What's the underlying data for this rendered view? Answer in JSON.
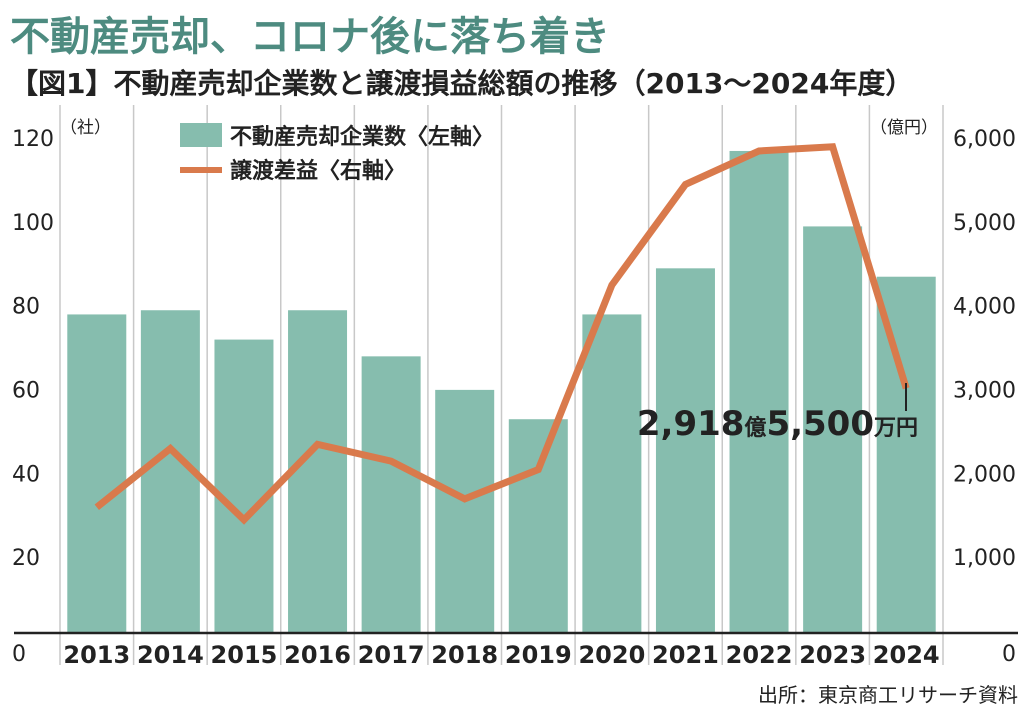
{
  "title": "不動産売却、コロナ後に落ち着き",
  "subtitle": "【図1】不動産売却企業数と譲渡損益総額の推移（2013～2024年度）",
  "source": "出所：東京商工リサーチ資料",
  "colors": {
    "bar": "#86bdae",
    "line": "#d97a4c",
    "title": "#4d8b80",
    "axis": "#222222"
  },
  "chart_data": {
    "type": "bar+line",
    "categories": [
      "2013",
      "2014",
      "2015",
      "2016",
      "2017",
      "2018",
      "2019",
      "2020",
      "2021",
      "2022",
      "2023",
      "2024"
    ],
    "series": [
      {
        "name": "不動産売却企業数〈左軸〉",
        "type": "bar",
        "axis": "left",
        "values": [
          76,
          77,
          70,
          77,
          66,
          58,
          51,
          76,
          87,
          115,
          97,
          85
        ]
      },
      {
        "name": "譲渡差益〈右軸〉",
        "type": "line",
        "axis": "right",
        "values": [
          1500,
          2200,
          1350,
          2250,
          2050,
          1600,
          1950,
          4150,
          5350,
          5750,
          5800,
          2918.55
        ]
      }
    ],
    "left_axis": {
      "unit": "（社）",
      "ylim": [
        0,
        120
      ],
      "ticks": [
        0,
        20,
        40,
        60,
        80,
        100,
        120
      ]
    },
    "right_axis": {
      "unit": "（億円）",
      "ylim": [
        0,
        6000
      ],
      "ticks": [
        "0",
        "1,000",
        "2,000",
        "3,000",
        "4,000",
        "5,000",
        "6,000"
      ]
    },
    "annotation": {
      "category": "2024",
      "value_main": "2,918",
      "unit1": "億",
      "value_sub": "5,500",
      "unit2": "万円"
    },
    "grid": "vertical",
    "legend_position": "top-left"
  }
}
